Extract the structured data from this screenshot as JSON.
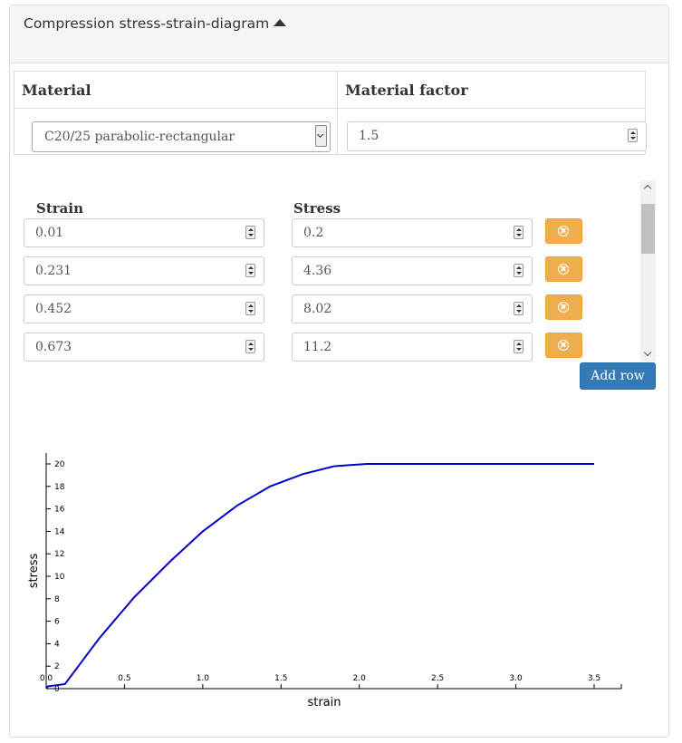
{
  "panel": {
    "title": "Compression stress-strain-diagram"
  },
  "material": {
    "header_material": "Material",
    "header_factor": "Material factor",
    "selected": "C20/25 parabolic-rectangular",
    "factor_value": "1.5"
  },
  "rows_table": {
    "header_strain": "Strain",
    "header_stress": "Stress",
    "rows": [
      {
        "strain": "0.01",
        "stress": "0.2"
      },
      {
        "strain": "0.231",
        "stress": "4.36"
      },
      {
        "strain": "0.452",
        "stress": "8.02"
      },
      {
        "strain": "0.673",
        "stress": "11.2"
      }
    ],
    "add_row_label": "Add row"
  },
  "chart_data": {
    "type": "line",
    "xlabel": "strain",
    "ylabel": "stress",
    "xlim": [
      0,
      3.5
    ],
    "ylim": [
      0,
      20
    ],
    "x_ticks": [
      "0.0",
      "0.5",
      "1.0",
      "1.5",
      "2.0",
      "2.5",
      "3.0",
      "3.5"
    ],
    "y_ticks": [
      "0",
      "2",
      "4",
      "6",
      "8",
      "10",
      "12",
      "14",
      "16",
      "18",
      "20"
    ],
    "line_color": "#0000cc",
    "grid": false,
    "series": [
      {
        "x": [
          0,
          0.01,
          0.12,
          0.34,
          0.56,
          0.79,
          1.0,
          1.22,
          1.43,
          1.64,
          1.84,
          2.05,
          3.5
        ],
        "y": [
          0,
          0.2,
          0.4,
          4.5,
          8.1,
          11.3,
          14.0,
          16.3,
          18.0,
          19.1,
          19.8,
          20.0,
          20.0
        ]
      }
    ]
  }
}
